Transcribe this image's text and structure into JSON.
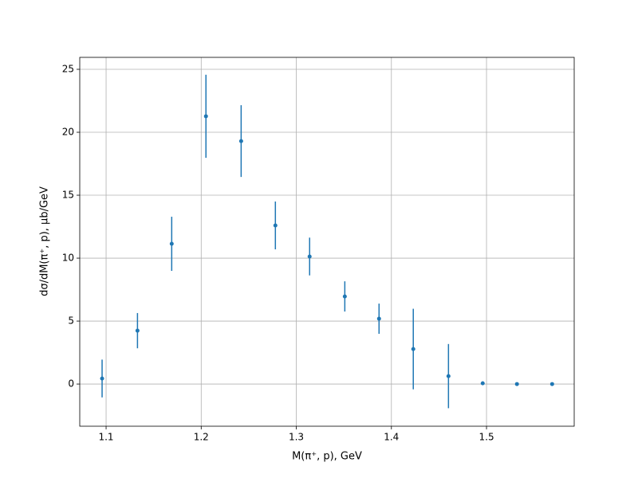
{
  "chart_data": {
    "type": "errorbar",
    "xlabel": "M(π⁺, p), GeV",
    "ylabel": "dσ/dM(π⁺, p), μb/GeV",
    "x": [
      1.0958,
      1.133,
      1.169,
      1.205,
      1.242,
      1.278,
      1.314,
      1.351,
      1.387,
      1.423,
      1.46,
      1.496,
      1.532,
      1.569
    ],
    "series": [
      {
        "color": "#1f77b4",
        "values": [
          0.44,
          4.24,
          11.14,
          21.27,
          19.3,
          12.6,
          10.13,
          6.96,
          5.19,
          2.78,
          0.63,
          0.06,
          0.0,
          0.0
        ],
        "errors": [
          1.5,
          1.4,
          2.15,
          3.3,
          2.85,
          1.9,
          1.5,
          1.2,
          1.2,
          3.2,
          2.55,
          0.15,
          0.05,
          0.05
        ]
      }
    ],
    "xlim": [
      1.0723,
      1.5922
    ],
    "ylim": [
      -3.35,
      25.95
    ],
    "xticks": [
      1.1,
      1.2,
      1.3,
      1.4,
      1.5
    ],
    "yticks": [
      0,
      5,
      10,
      15,
      20,
      25
    ],
    "grid": true
  }
}
